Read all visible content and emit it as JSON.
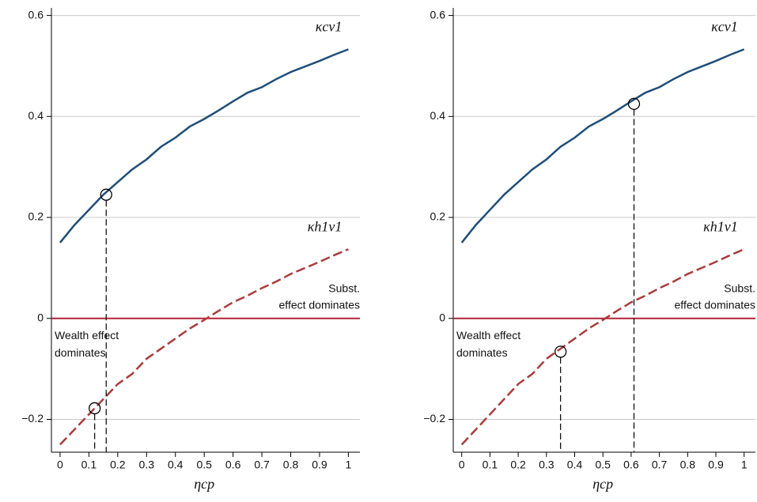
{
  "chart_data": [
    {
      "type": "line",
      "xlabel": "ηcp",
      "x": [
        0,
        0.05,
        0.1,
        0.15,
        0.2,
        0.25,
        0.3,
        0.35,
        0.4,
        0.45,
        0.5,
        0.55,
        0.6,
        0.65,
        0.7,
        0.75,
        0.8,
        0.85,
        0.9,
        0.95,
        1
      ],
      "series": [
        {
          "name": "κcv1",
          "color": "#1f4e79",
          "dash": false,
          "values": [
            0.15,
            0.185,
            0.215,
            0.245,
            0.27,
            0.295,
            0.315,
            0.34,
            0.358,
            0.38,
            0.395,
            0.412,
            0.43,
            0.447,
            0.458,
            0.474,
            0.488,
            0.499,
            0.51,
            0.522,
            0.533
          ]
        },
        {
          "name": "κh1v1",
          "color": "#a83c3c",
          "dash": true,
          "values": [
            -0.25,
            -0.22,
            -0.19,
            -0.16,
            -0.13,
            -0.11,
            -0.08,
            -0.06,
            -0.04,
            -0.02,
            -0.003,
            0.015,
            0.032,
            0.045,
            0.06,
            0.073,
            0.088,
            0.1,
            0.112,
            0.125,
            0.137
          ]
        }
      ],
      "markers": [
        {
          "x": 0.16,
          "y": 0.245
        },
        {
          "x": 0.12,
          "y": -0.178
        }
      ],
      "hline": 0,
      "hline_color": "#b5253a",
      "annotations": [
        "Subst.",
        "effect dominates",
        "Wealth effect",
        "dominates"
      ],
      "xlim": [
        -0.03,
        1.04
      ],
      "ylim": [
        -0.265,
        0.615
      ],
      "xticks": [
        0,
        0.1,
        0.2,
        0.3,
        0.4,
        0.5,
        0.6,
        0.7,
        0.8,
        0.9,
        1
      ],
      "yticks": [
        {
          "value": -0.2,
          "label": "−0.2"
        },
        0,
        0.2,
        0.4,
        0.6
      ],
      "grid": true
    },
    {
      "type": "line",
      "xlabel": "ηcp",
      "x": [
        0,
        0.05,
        0.1,
        0.15,
        0.2,
        0.25,
        0.3,
        0.35,
        0.4,
        0.45,
        0.5,
        0.55,
        0.6,
        0.65,
        0.7,
        0.75,
        0.8,
        0.85,
        0.9,
        0.95,
        1
      ],
      "series": [
        {
          "name": "κcv1",
          "color": "#1f4e79",
          "dash": false,
          "values": [
            0.15,
            0.185,
            0.215,
            0.245,
            0.27,
            0.295,
            0.315,
            0.34,
            0.358,
            0.38,
            0.395,
            0.412,
            0.43,
            0.447,
            0.458,
            0.474,
            0.488,
            0.499,
            0.51,
            0.522,
            0.533
          ]
        },
        {
          "name": "κh1v1",
          "color": "#a83c3c",
          "dash": true,
          "values": [
            -0.25,
            -0.22,
            -0.19,
            -0.16,
            -0.13,
            -0.11,
            -0.08,
            -0.06,
            -0.04,
            -0.02,
            -0.003,
            0.015,
            0.032,
            0.045,
            0.06,
            0.073,
            0.088,
            0.1,
            0.112,
            0.125,
            0.137
          ]
        }
      ],
      "markers": [
        {
          "x": 0.61,
          "y": 0.425
        },
        {
          "x": 0.35,
          "y": -0.066
        }
      ],
      "hline": 0,
      "hline_color": "#b5253a",
      "annotations": [
        "Subst.",
        "effect dominates",
        "Wealth effect",
        "dominates"
      ],
      "xlim": [
        -0.03,
        1.04
      ],
      "ylim": [
        -0.265,
        0.615
      ],
      "xticks": [
        0,
        0.1,
        0.2,
        0.3,
        0.4,
        0.5,
        0.6,
        0.7,
        0.8,
        0.9,
        1
      ],
      "yticks": [
        {
          "value": -0.2,
          "label": "−0.2"
        },
        0,
        0.2,
        0.4,
        0.6
      ],
      "grid": true
    }
  ]
}
